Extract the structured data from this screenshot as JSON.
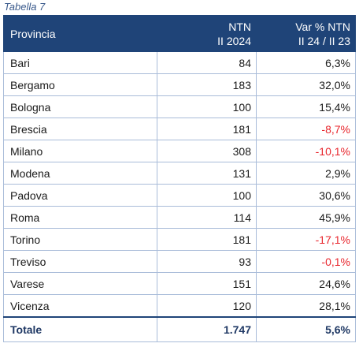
{
  "caption": "Tabella 7",
  "header": {
    "col1": "Provincia",
    "col2_line1": "NTN",
    "col2_line2": "II 2024",
    "col3_line1": "Var % NTN",
    "col3_line2": "II 24 / II 23"
  },
  "rows": [
    {
      "provincia": "Bari",
      "ntn": "84",
      "var": "6,3%",
      "negative": false
    },
    {
      "provincia": "Bergamo",
      "ntn": "183",
      "var": "32,0%",
      "negative": false
    },
    {
      "provincia": "Bologna",
      "ntn": "100",
      "var": "15,4%",
      "negative": false
    },
    {
      "provincia": "Brescia",
      "ntn": "181",
      "var": "-8,7%",
      "negative": true
    },
    {
      "provincia": "Milano",
      "ntn": "308",
      "var": "-10,1%",
      "negative": true
    },
    {
      "provincia": "Modena",
      "ntn": "131",
      "var": "2,9%",
      "negative": false
    },
    {
      "provincia": "Padova",
      "ntn": "100",
      "var": "30,6%",
      "negative": false
    },
    {
      "provincia": "Roma",
      "ntn": "114",
      "var": "45,9%",
      "negative": false
    },
    {
      "provincia": "Torino",
      "ntn": "181",
      "var": "-17,1%",
      "negative": true
    },
    {
      "provincia": "Treviso",
      "ntn": "93",
      "var": "-0,1%",
      "negative": true
    },
    {
      "provincia": "Varese",
      "ntn": "151",
      "var": "24,6%",
      "negative": false
    },
    {
      "provincia": "Vicenza",
      "ntn": "120",
      "var": "28,1%",
      "negative": false
    }
  ],
  "total": {
    "label": "Totale",
    "ntn": "1.747",
    "var": "5,6%"
  },
  "colors": {
    "header_bg": "#1f4478",
    "negative": "#e8242b",
    "border": "#a9bcd9",
    "caption": "#3a5a8c"
  }
}
